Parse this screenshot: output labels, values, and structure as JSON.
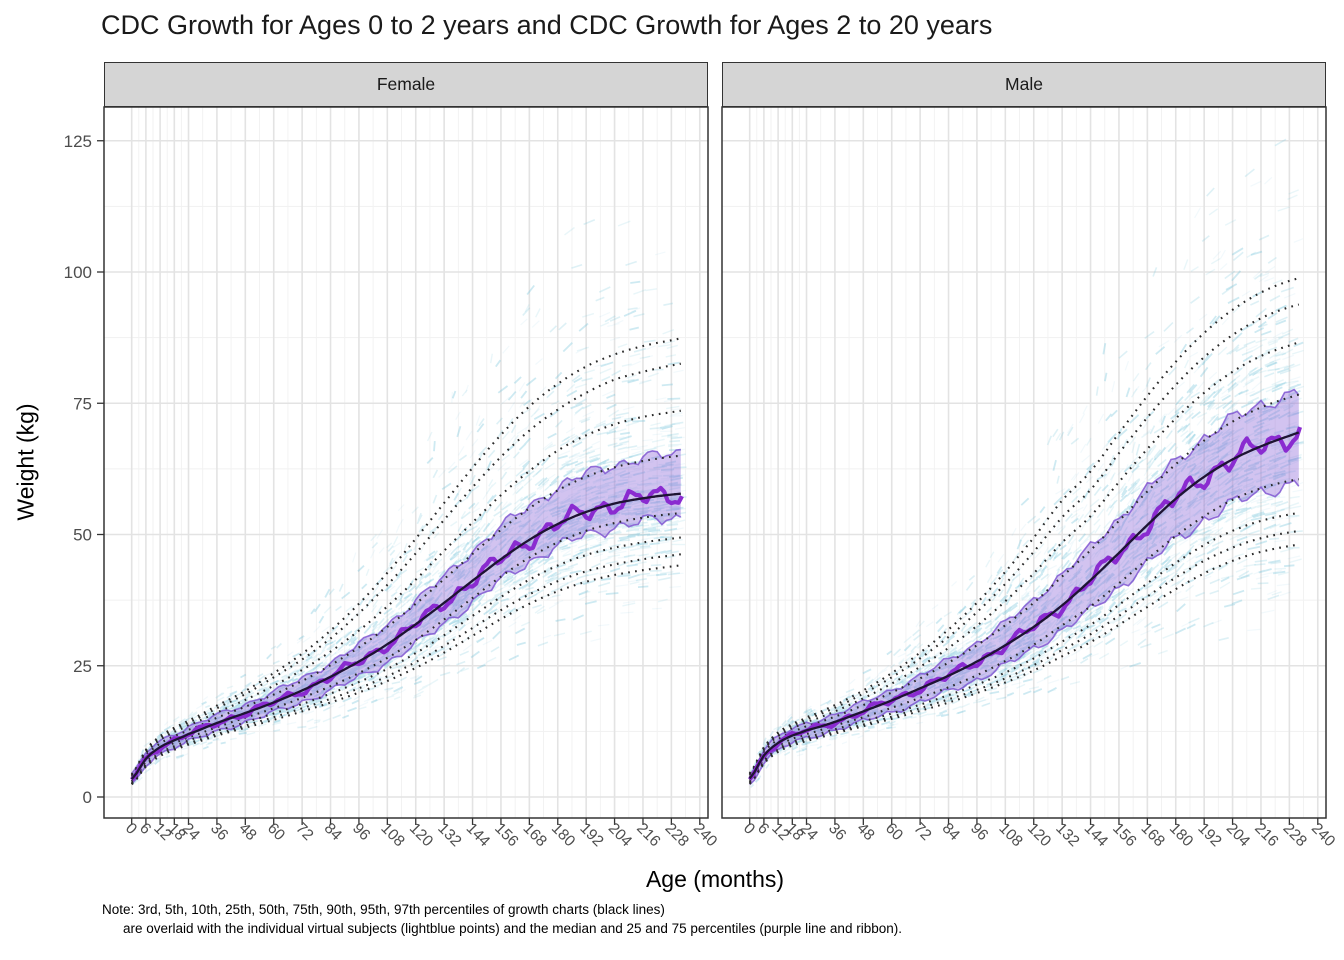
{
  "title": "CDC Growth for Ages 0 to 2 years and CDC Growth for Ages 2 to 20 years",
  "facets": [
    {
      "label": "Female"
    },
    {
      "label": "Male"
    }
  ],
  "axes": {
    "x": {
      "title": "Age (months)",
      "ticks": [
        0,
        6,
        12,
        18,
        24,
        36,
        48,
        60,
        72,
        84,
        96,
        108,
        120,
        132,
        144,
        156,
        168,
        180,
        192,
        204,
        216,
        228,
        240
      ]
    },
    "y": {
      "title": "Weight (kg)",
      "ticks": [
        0,
        25,
        50,
        75,
        100,
        125
      ]
    }
  },
  "note": {
    "line1": "Note: 3rd, 5th, 10th, 25th, 50th, 75th, 90th, 95th, 97th percentiles of growth charts (black lines)",
    "line2": "are overlaid with the individual virtual subjects (lightblue points) and the median and 25 and 75 percentiles (purple line and ribbon)."
  },
  "colors": {
    "strip_bg": "#D5D5D5",
    "strip_border": "#333333",
    "panel_border": "#333333",
    "grid_major": "#E3E3E3",
    "grid_minor": "#F1F1F1",
    "axis_text": "#4D4D4D",
    "tick_mark": "#333333",
    "percentile_line": "#2A2A2A",
    "cdc_median_line": "#1E1433",
    "sim_median_line": "#8A2BD0",
    "ribbon_fill": "#9370DB",
    "ribbon_edge": "#7B4FD0",
    "subject_points": "#7EC8DD"
  },
  "chart_data": {
    "type": "line",
    "title": "CDC Growth for Ages 0 to 2 years and CDC Growth for Ages 2 to 20 years",
    "xlabel": "Age (months)",
    "ylabel": "Weight (kg)",
    "xlim": [
      0,
      240
    ],
    "ylim": [
      -4,
      131
    ],
    "grid": true,
    "facet_labels": [
      "Female",
      "Male"
    ],
    "percentile_labels": [
      "3rd",
      "5th",
      "10th",
      "25th",
      "50th",
      "75th",
      "90th",
      "95th",
      "97th"
    ],
    "sim_overlay": {
      "points": "individual virtual subjects (lightblue points)",
      "line": "median of virtual subjects (purple line)",
      "ribbon": "25th and 75th percentiles of virtual subjects (purple ribbon)",
      "age_end_months": 233
    },
    "ages_months": [
      0,
      6,
      12,
      18,
      24,
      36,
      48,
      60,
      72,
      84,
      96,
      108,
      120,
      132,
      144,
      156,
      168,
      180,
      192,
      204,
      216,
      228,
      240
    ],
    "series": {
      "Female": {
        "p3": [
          2.4,
          5.8,
          7.8,
          9.0,
          10.0,
          11.7,
          13.2,
          14.7,
          16.3,
          18.0,
          19.9,
          22.1,
          24.6,
          27.5,
          30.7,
          33.9,
          36.8,
          39.2,
          41.0,
          42.3,
          43.2,
          43.9,
          44.5
        ],
        "p5": [
          2.5,
          6.0,
          8.1,
          9.3,
          10.3,
          12.0,
          13.6,
          15.2,
          16.9,
          18.7,
          20.7,
          23.0,
          25.7,
          28.8,
          32.2,
          35.6,
          38.6,
          41.1,
          43.0,
          44.3,
          45.3,
          46.0,
          46.6
        ],
        "p10": [
          2.7,
          6.3,
          8.4,
          9.7,
          10.8,
          12.6,
          14.2,
          15.9,
          17.7,
          19.7,
          21.9,
          24.4,
          27.4,
          30.8,
          34.5,
          38.1,
          41.4,
          44.1,
          46.1,
          47.5,
          48.5,
          49.2,
          49.8
        ],
        "p25": [
          3.0,
          6.8,
          9.0,
          10.3,
          11.4,
          13.3,
          15.1,
          16.9,
          18.9,
          21.1,
          23.6,
          26.5,
          29.9,
          33.8,
          37.9,
          42.0,
          45.6,
          48.5,
          50.7,
          52.2,
          53.2,
          53.9,
          54.4
        ],
        "p50": [
          3.4,
          7.3,
          9.5,
          10.8,
          12.0,
          14.1,
          16.0,
          18.0,
          20.3,
          22.9,
          25.8,
          29.1,
          32.9,
          37.0,
          41.2,
          45.3,
          49.0,
          52.0,
          54.3,
          55.9,
          56.9,
          57.6,
          58.0
        ],
        "p75": [
          3.7,
          7.9,
          10.2,
          11.6,
          12.8,
          15.1,
          17.2,
          19.5,
          22.1,
          25.1,
          28.5,
          32.4,
          36.8,
          41.5,
          46.3,
          50.9,
          55.0,
          58.4,
          61.0,
          62.8,
          64.0,
          64.8,
          65.3
        ],
        "p90": [
          4.0,
          8.4,
          10.9,
          12.4,
          13.7,
          16.1,
          18.5,
          21.2,
          24.2,
          27.7,
          31.7,
          36.3,
          41.4,
          46.9,
          52.3,
          57.5,
          62.1,
          66.0,
          68.9,
          71.0,
          72.4,
          73.3,
          74.0
        ],
        "p95": [
          4.2,
          8.8,
          11.3,
          12.9,
          14.2,
          16.9,
          19.6,
          22.8,
          26.2,
          30.2,
          35.0,
          40.4,
          46.4,
          52.8,
          59.0,
          64.8,
          69.8,
          73.8,
          77.0,
          79.5,
          81.0,
          82.2,
          83.0
        ],
        "p97": [
          4.3,
          9.0,
          11.6,
          13.2,
          14.6,
          17.4,
          20.2,
          23.6,
          27.3,
          31.7,
          36.8,
          42.7,
          49.2,
          56.0,
          62.7,
          69.0,
          74.4,
          78.7,
          82.0,
          84.3,
          85.9,
          87.0,
          88.0
        ]
      },
      "Male": {
        "p3": [
          2.5,
          6.4,
          8.6,
          9.8,
          10.7,
          12.1,
          13.5,
          14.9,
          16.4,
          18.0,
          19.8,
          21.8,
          24.1,
          26.8,
          29.5,
          32.8,
          36.2,
          39.6,
          42.6,
          45.0,
          46.7,
          47.8,
          48.5
        ],
        "p5": [
          2.6,
          6.6,
          8.8,
          10.1,
          11.0,
          12.4,
          13.8,
          15.3,
          16.9,
          18.6,
          20.4,
          22.6,
          25.1,
          28.0,
          31.0,
          34.5,
          38.2,
          41.8,
          45.0,
          47.5,
          49.3,
          50.4,
          51.0
        ],
        "p10": [
          2.8,
          6.9,
          9.2,
          10.5,
          11.4,
          12.9,
          14.4,
          15.9,
          17.6,
          19.4,
          21.4,
          23.7,
          26.4,
          29.6,
          32.8,
          36.6,
          40.7,
          44.6,
          48.0,
          50.7,
          52.6,
          53.8,
          54.5
        ],
        "p25": [
          3.1,
          7.4,
          9.7,
          11.1,
          12.0,
          13.6,
          15.2,
          17.0,
          18.9,
          20.9,
          23.2,
          25.9,
          29.0,
          32.7,
          36.3,
          40.7,
          45.3,
          49.7,
          53.5,
          56.6,
          58.8,
          60.2,
          61.0
        ],
        "p50": [
          3.5,
          7.9,
          10.3,
          11.7,
          12.7,
          14.3,
          16.3,
          18.4,
          20.7,
          23.1,
          25.8,
          28.9,
          32.4,
          36.5,
          41.3,
          46.5,
          51.8,
          56.8,
          61.0,
          64.3,
          66.8,
          68.8,
          70.5
        ],
        "p75": [
          3.8,
          8.5,
          11.0,
          12.4,
          13.5,
          15.3,
          17.5,
          19.9,
          22.6,
          25.6,
          28.9,
          32.7,
          37.0,
          42.0,
          47.0,
          52.6,
          58.2,
          63.4,
          67.9,
          71.5,
          74.2,
          76.1,
          77.5
        ],
        "p90": [
          4.2,
          9.0,
          11.6,
          13.1,
          14.3,
          16.3,
          18.8,
          21.6,
          24.8,
          28.4,
          32.6,
          37.3,
          42.6,
          48.5,
          53.5,
          60.0,
          66.3,
          72.1,
          77.0,
          81.0,
          84.0,
          86.0,
          87.5
        ],
        "p95": [
          4.4,
          9.3,
          12.0,
          13.6,
          14.8,
          17.0,
          19.7,
          22.8,
          26.4,
          30.5,
          35.2,
          40.6,
          46.7,
          53.3,
          58.5,
          65.5,
          72.3,
          78.5,
          83.8,
          88.0,
          91.2,
          93.3,
          94.5
        ],
        "p97": [
          4.5,
          9.5,
          12.3,
          13.9,
          15.2,
          17.5,
          20.3,
          23.6,
          27.5,
          31.9,
          37.0,
          42.9,
          49.4,
          56.5,
          62.0,
          69.3,
          76.4,
          82.9,
          88.4,
          92.8,
          96.1,
          98.3,
          99.5
        ]
      }
    }
  }
}
